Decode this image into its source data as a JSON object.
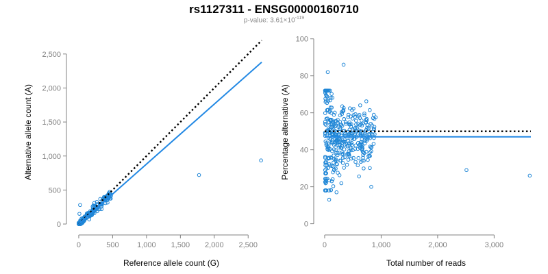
{
  "title": "rs1127311 - ENSG00000160710",
  "subtitle": {
    "prefix": "p-value: 3.61×10",
    "exponent": "-119"
  },
  "colors": {
    "points": "#1f86d6",
    "fit_line": "#2389e4",
    "reference_line": "#000000",
    "axis": "#808080"
  },
  "chart_data": [
    {
      "type": "scatter",
      "xlabel": "Reference allele count (G)",
      "ylabel": "Alternative allele count (A)",
      "xlim": [
        -50,
        2750
      ],
      "ylim": [
        -50,
        2750
      ],
      "x_ticks": [
        0,
        500,
        1000,
        1500,
        2000,
        2500
      ],
      "x_tick_labels": [
        "0",
        "500",
        "1,000",
        "1,500",
        "2,000",
        "2,500"
      ],
      "y_ticks": [
        0,
        500,
        1000,
        1500,
        2000,
        2500
      ],
      "y_tick_labels": [
        "0",
        "500",
        "1,000",
        "1,500",
        "2,000",
        "2,500"
      ],
      "reference_line": {
        "style": "dotted",
        "x": [
          0,
          2700
        ],
        "y": [
          0,
          2700
        ]
      },
      "fit_line": {
        "style": "solid",
        "x": [
          0,
          2700
        ],
        "y": [
          0,
          2380
        ]
      },
      "outliers": [
        {
          "x": 1775,
          "y": 720
        },
        {
          "x": 2690,
          "y": 935
        }
      ],
      "cluster": {
        "x_range": [
          0,
          480
        ],
        "slope": 0.92
      }
    },
    {
      "type": "scatter",
      "xlabel": "Total number of reads",
      "ylabel": "Percentage alternative (A)",
      "xlim": [
        -60,
        3650
      ],
      "ylim": [
        -2,
        101
      ],
      "x_ticks": [
        0,
        1000,
        2000,
        3000
      ],
      "x_tick_labels": [
        "0",
        "1,000",
        "2,000",
        "3,000"
      ],
      "y_ticks": [
        0,
        20,
        40,
        60,
        80,
        100
      ],
      "y_tick_labels": [
        "0",
        "20",
        "40",
        "60",
        "80",
        "100"
      ],
      "reference_line": {
        "style": "dotted",
        "y": 50
      },
      "fit_line": {
        "style": "solid",
        "y": 47
      },
      "outliers": [
        {
          "x": 2510,
          "y": 29
        },
        {
          "x": 3630,
          "y": 26
        },
        {
          "x": 335,
          "y": 86
        },
        {
          "x": 55,
          "y": 82
        },
        {
          "x": 80,
          "y": 13
        },
        {
          "x": 210,
          "y": 17
        }
      ],
      "cluster": {
        "x_range": [
          0,
          900
        ],
        "center": 47
      }
    }
  ]
}
